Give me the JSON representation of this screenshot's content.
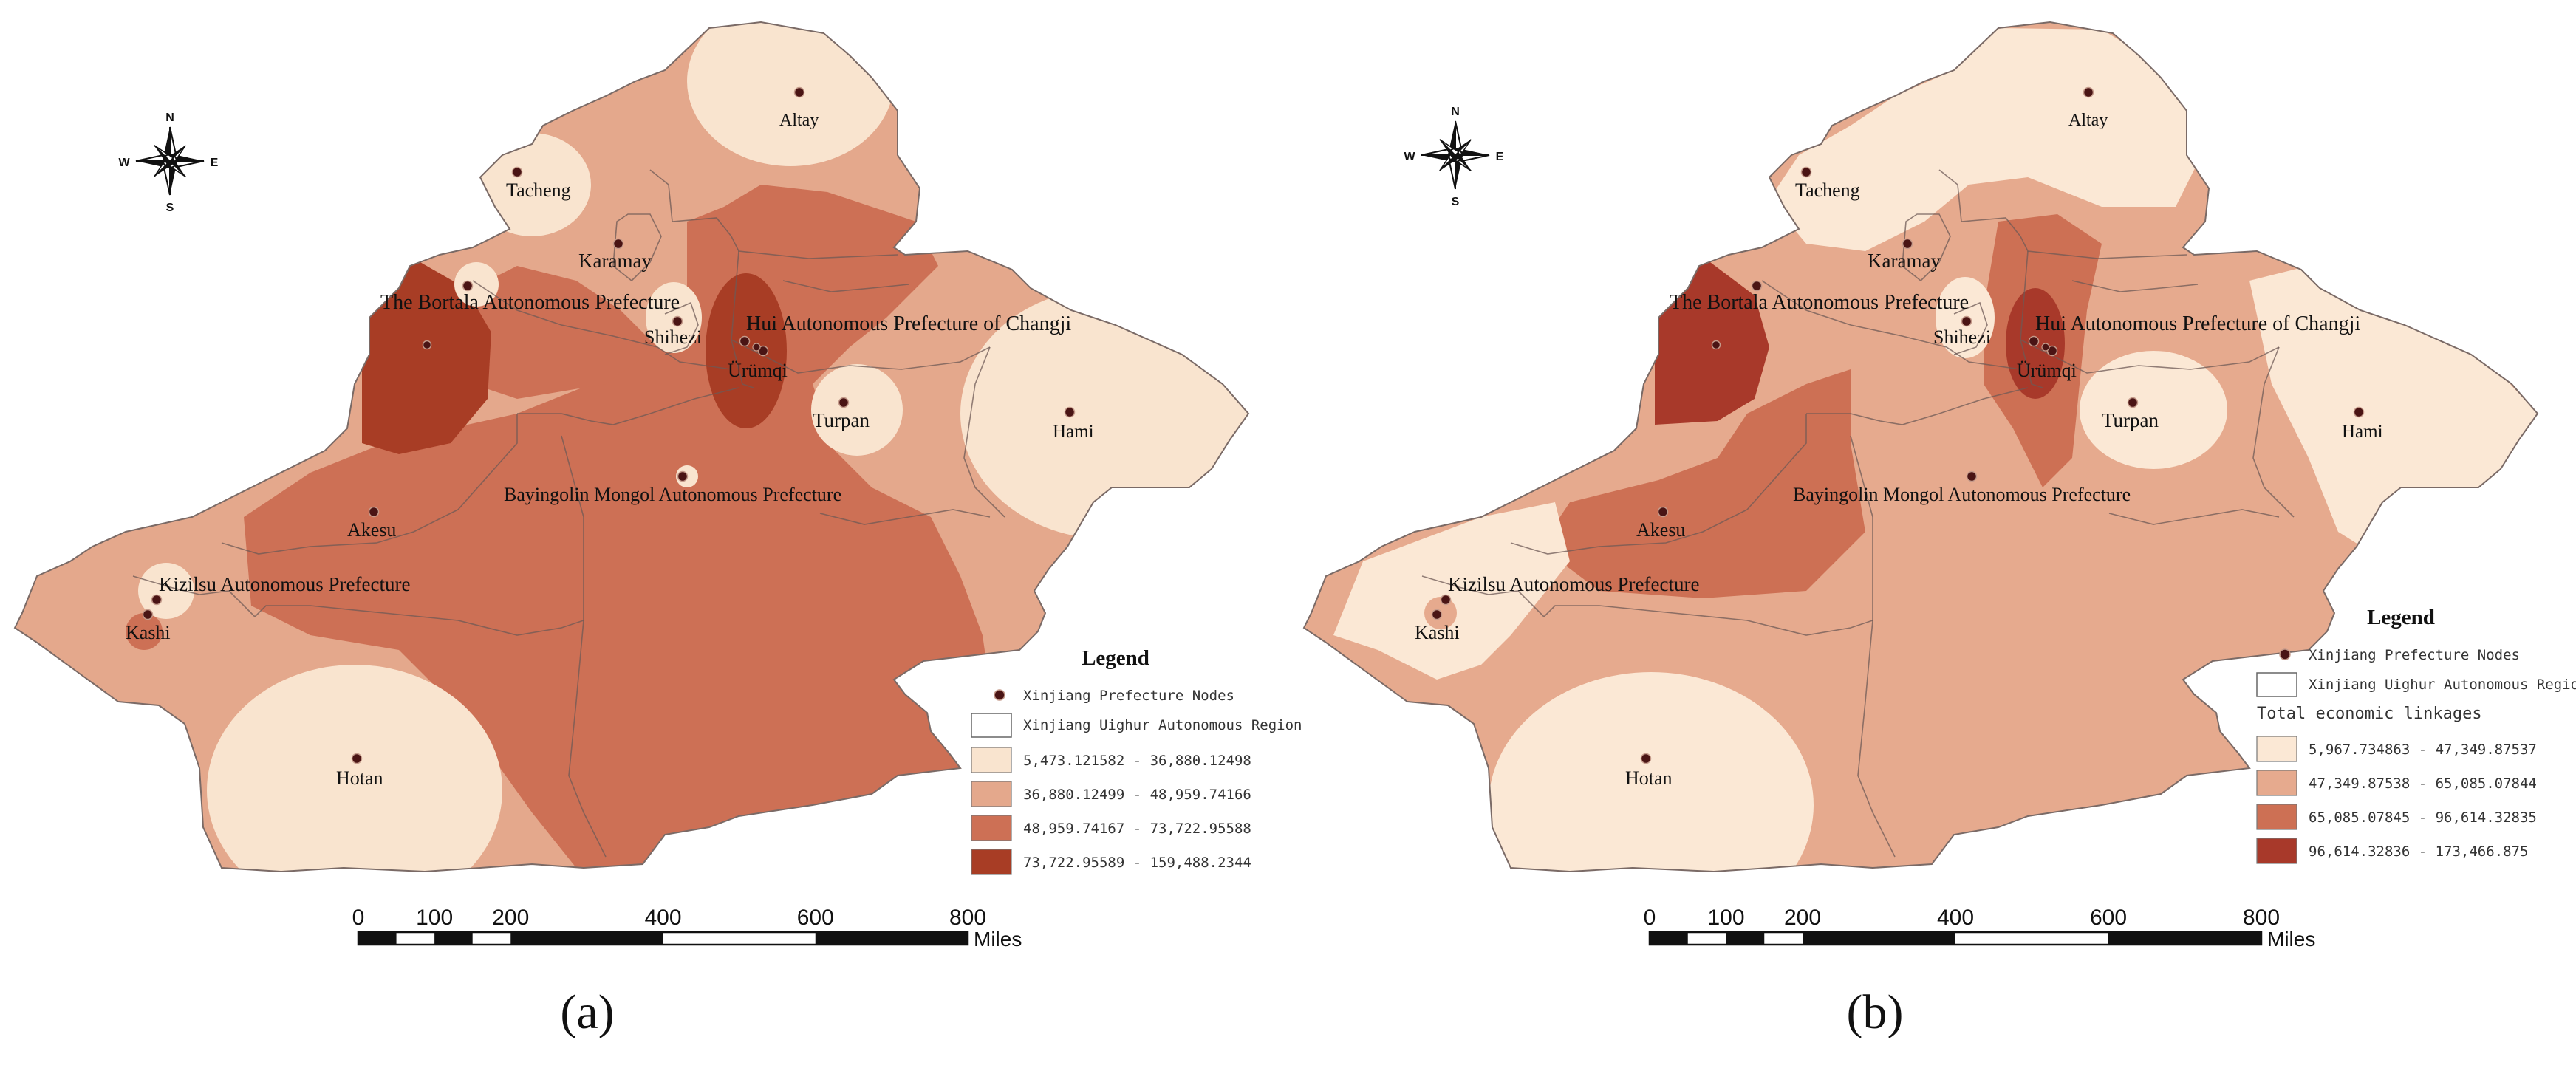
{
  "panels": [
    {
      "id": "a",
      "caption": "(a)",
      "colors": [
        "#f9e4cf",
        "#e4a88c",
        "#cd7055",
        "#a83d25"
      ],
      "legend": {
        "title": "Legend",
        "node_label": "Xinjiang Prefecture Nodes",
        "region_label": "Xinjiang Uighur Autonomous Region",
        "subtitle": "",
        "classes": [
          "5,473.121582 - 36,880.12498",
          "36,880.12499 - 48,959.74166",
          "48,959.74167 - 73,722.95588",
          "73,722.95589 - 159,488.2344"
        ]
      },
      "nodes": [
        {
          "id": "altay",
          "label": "Altay"
        },
        {
          "id": "tacheng",
          "label": "Tacheng"
        },
        {
          "id": "karamay",
          "label": "Karamay"
        },
        {
          "id": "bortala",
          "label": "The Bortala Autonomous Prefecture"
        },
        {
          "id": "shihezi",
          "label": "Shihezi"
        },
        {
          "id": "changji",
          "label": "Hui Autonomous Prefecture of Changji"
        },
        {
          "id": "urumqi",
          "label": "Ürümqi"
        },
        {
          "id": "turpan",
          "label": "Turpan"
        },
        {
          "id": "hami",
          "label": "Hami"
        },
        {
          "id": "bayingolin",
          "label": "Bayingolin Mongol Autonomous Prefecture"
        },
        {
          "id": "akesu",
          "label": "Akesu"
        },
        {
          "id": "kizilsu",
          "label": "Kizilsu Autonomous Prefecture"
        },
        {
          "id": "kashi",
          "label": "Kashi"
        },
        {
          "id": "hotan",
          "label": "Hotan"
        }
      ],
      "scale": {
        "ticks": [
          "0",
          "100",
          "200",
          "400",
          "600",
          "800"
        ],
        "unit": "Miles"
      },
      "compass": {
        "n": "N",
        "s": "S",
        "e": "E",
        "w": "W"
      }
    },
    {
      "id": "b",
      "caption": "(b)",
      "colors": [
        "#fbe8d5",
        "#e6aa8e",
        "#cd7054",
        "#a8392a"
      ],
      "legend": {
        "title": "Legend",
        "node_label": "Xinjiang Prefecture Nodes",
        "region_label": "Xinjiang Uighur Autonomous Region",
        "subtitle": "Total economic linkages",
        "classes": [
          "5,967.734863 - 47,349.87537",
          "47,349.87538 - 65,085.07844",
          "65,085.07845 - 96,614.32835",
          "96,614.32836 - 173,466.875"
        ]
      },
      "nodes": [
        {
          "id": "altay",
          "label": "Altay"
        },
        {
          "id": "tacheng",
          "label": "Tacheng"
        },
        {
          "id": "karamay",
          "label": "Karamay"
        },
        {
          "id": "bortala",
          "label": "The Bortala Autonomous Prefecture"
        },
        {
          "id": "shihezi",
          "label": "Shihezi"
        },
        {
          "id": "changji",
          "label": "Hui Autonomous Prefecture of Changji"
        },
        {
          "id": "urumqi",
          "label": "Ürümqi"
        },
        {
          "id": "turpan",
          "label": "Turpan"
        },
        {
          "id": "hami",
          "label": "Hami"
        },
        {
          "id": "bayingolin",
          "label": "Bayingolin Mongol Autonomous Prefecture"
        },
        {
          "id": "akesu",
          "label": "Akesu"
        },
        {
          "id": "kizilsu",
          "label": "Kizilsu Autonomous Prefecture"
        },
        {
          "id": "kashi",
          "label": "Kashi"
        },
        {
          "id": "hotan",
          "label": "Hotan"
        }
      ],
      "scale": {
        "ticks": [
          "0",
          "100",
          "200",
          "400",
          "600",
          "800"
        ],
        "unit": "Miles"
      },
      "compass": {
        "n": "N",
        "s": "S",
        "e": "E",
        "w": "W"
      }
    }
  ]
}
